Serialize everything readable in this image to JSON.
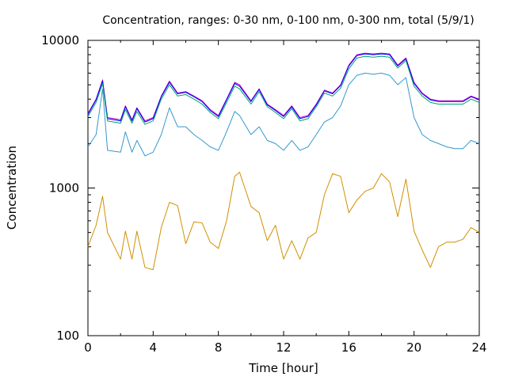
{
  "chart_data": {
    "type": "line",
    "title": "Concentration, ranges: 0-30 nm, 0-100 nm, 0-300 nm, total (5/9/1)",
    "xlabel": "Time [hour]",
    "ylabel": "Concentration",
    "xlim": [
      0,
      24
    ],
    "ylim": [
      100,
      10000
    ],
    "yscale": "log",
    "grid": false,
    "xticks": [
      0,
      4,
      8,
      12,
      16,
      20,
      24
    ],
    "xtick_labels": [
      "0",
      "4",
      "8",
      "12",
      "16",
      "20",
      "24"
    ],
    "yticks": [
      100,
      1000,
      10000
    ],
    "ytick_labels": [
      "100",
      "1000",
      "10000"
    ],
    "x": [
      0,
      0.5,
      0.9,
      1.2,
      2,
      2.3,
      2.7,
      3,
      3.5,
      4,
      4.5,
      5,
      5.5,
      6,
      6.5,
      7,
      7.5,
      8,
      8.5,
      9,
      9.3,
      10,
      10.5,
      11,
      11.5,
      12,
      12.5,
      13,
      13.5,
      14,
      14.5,
      15,
      15.5,
      16,
      16.5,
      17,
      17.5,
      18,
      18.5,
      19,
      19.5,
      20,
      20.5,
      21,
      21.5,
      22,
      22.5,
      23,
      23.5,
      24
    ],
    "series": [
      {
        "color": "#c000c0",
        "values": [
          3200,
          4000,
          5400,
          3000,
          2900,
          3600,
          2900,
          3500,
          2850,
          3000,
          4200,
          5300,
          4400,
          4500,
          4200,
          3900,
          3400,
          3100,
          4000,
          5200,
          5000,
          3900,
          4700,
          3700,
          3400,
          3100,
          3600,
          3000,
          3100,
          3700,
          4600,
          4400,
          5000,
          6800,
          8000,
          8200,
          8100,
          8200,
          8100,
          6800,
          7600,
          5200,
          4400,
          4000,
          3900,
          3900,
          3900,
          3900,
          4200,
          4000
        ]
      },
      {
        "color": "#0000ff",
        "values": [
          3150,
          3950,
          5300,
          2950,
          2850,
          3550,
          2850,
          3450,
          2800,
          2950,
          4150,
          5200,
          4350,
          4450,
          4150,
          3850,
          3350,
          3050,
          3950,
          5100,
          4900,
          3850,
          4650,
          3650,
          3350,
          3050,
          3550,
          2950,
          3050,
          3650,
          4550,
          4350,
          4950,
          6700,
          7900,
          8100,
          8000,
          8100,
          8000,
          6700,
          7500,
          5100,
          4350,
          3950,
          3850,
          3850,
          3850,
          3850,
          4150,
          3950
        ]
      },
      {
        "color": "#00a070",
        "values": [
          3050,
          3800,
          5100,
          2850,
          2750,
          3400,
          2750,
          3300,
          2700,
          2850,
          4000,
          5000,
          4200,
          4300,
          4000,
          3700,
          3250,
          2950,
          3800,
          4900,
          4700,
          3700,
          4500,
          3550,
          3250,
          2950,
          3450,
          2850,
          2950,
          3550,
          4400,
          4200,
          4750,
          6400,
          7600,
          7800,
          7700,
          7800,
          7700,
          6500,
          7300,
          4900,
          4200,
          3800,
          3700,
          3700,
          3700,
          3700,
          4000,
          3800
        ]
      },
      {
        "color": "#3399cc",
        "values": [
          1900,
          2300,
          4700,
          1800,
          1750,
          2400,
          1750,
          2100,
          1650,
          1750,
          2300,
          3500,
          2600,
          2600,
          2300,
          2100,
          1900,
          1800,
          2400,
          3300,
          3100,
          2300,
          2600,
          2100,
          2000,
          1800,
          2100,
          1800,
          1900,
          2300,
          2800,
          3000,
          3600,
          5000,
          5800,
          6000,
          5900,
          6000,
          5800,
          5000,
          5600,
          3000,
          2300,
          2100,
          2000,
          1900,
          1850,
          1850,
          2100,
          2000
        ]
      },
      {
        "color": "#d09000",
        "values": [
          400,
          560,
          880,
          500,
          330,
          510,
          330,
          510,
          290,
          280,
          540,
          800,
          760,
          420,
          590,
          580,
          430,
          390,
          600,
          1200,
          1280,
          750,
          680,
          440,
          560,
          330,
          440,
          330,
          460,
          500,
          900,
          1250,
          1200,
          680,
          830,
          950,
          1000,
          1250,
          1100,
          640,
          1150,
          510,
          380,
          290,
          400,
          430,
          430,
          450,
          540,
          500
        ]
      }
    ]
  }
}
